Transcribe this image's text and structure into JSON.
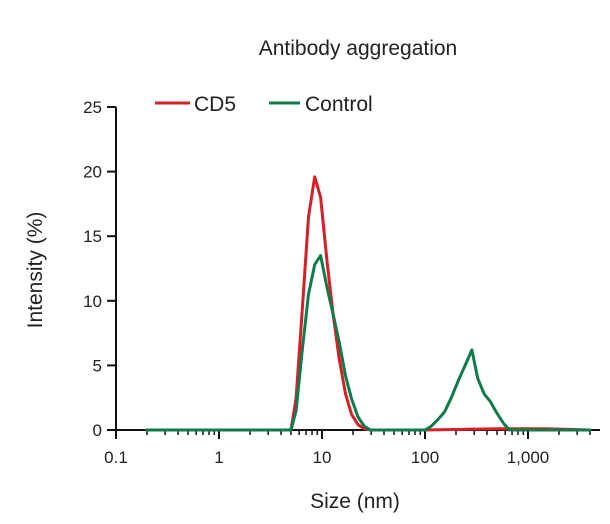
{
  "chart_data": {
    "type": "line",
    "title": "Antibody aggregation",
    "xlabel": "Size (nm)",
    "ylabel": "Intensity (%)",
    "x_scale": "log",
    "xlim": [
      0.1,
      5000
    ],
    "ylim": [
      0,
      25
    ],
    "x_ticks": [
      0.1,
      1,
      10,
      100,
      1000
    ],
    "x_tick_labels": [
      "0.1",
      "1",
      "10",
      "100",
      "1,000"
    ],
    "y_ticks": [
      0,
      5,
      10,
      15,
      20,
      25
    ],
    "y_tick_labels": [
      "0",
      "5",
      "10",
      "15",
      "20",
      "25"
    ],
    "grid": false,
    "legend_position": "top",
    "series": [
      {
        "name": "CD5",
        "color": "#d62027",
        "x": [
          0.2,
          1,
          4,
          5,
          5.6,
          6.4,
          7.4,
          8.5,
          9.7,
          11.2,
          12.8,
          14.7,
          16.9,
          19.4,
          22.4,
          25.7,
          29.6,
          40,
          100,
          500,
          1500,
          4000
        ],
        "y": [
          0,
          0,
          0,
          0,
          2.5,
          9,
          16.5,
          19.6,
          18,
          13,
          9,
          5.5,
          2.8,
          1.2,
          0.4,
          0.1,
          0,
          0,
          0,
          0.1,
          0.1,
          0
        ]
      },
      {
        "name": "Control",
        "color": "#0f7b4a",
        "x": [
          0.2,
          1,
          4,
          5,
          5.6,
          6.4,
          7.4,
          8.5,
          9.7,
          11.2,
          12.8,
          14.7,
          16.9,
          19.4,
          22.4,
          25.7,
          29.6,
          40,
          100,
          115,
          133,
          155,
          180,
          210,
          245,
          285,
          325,
          375,
          430,
          500,
          580,
          660,
          1000,
          4000
        ],
        "y": [
          0,
          0,
          0,
          0,
          1.5,
          6,
          10.5,
          12.8,
          13.5,
          11,
          9,
          6.8,
          4.2,
          2.4,
          1,
          0.3,
          0,
          0,
          0,
          0.3,
          0.8,
          1.4,
          2.5,
          3.8,
          5,
          6.2,
          4,
          2.8,
          2.2,
          1.3,
          0.5,
          0,
          0,
          0
        ]
      }
    ]
  }
}
